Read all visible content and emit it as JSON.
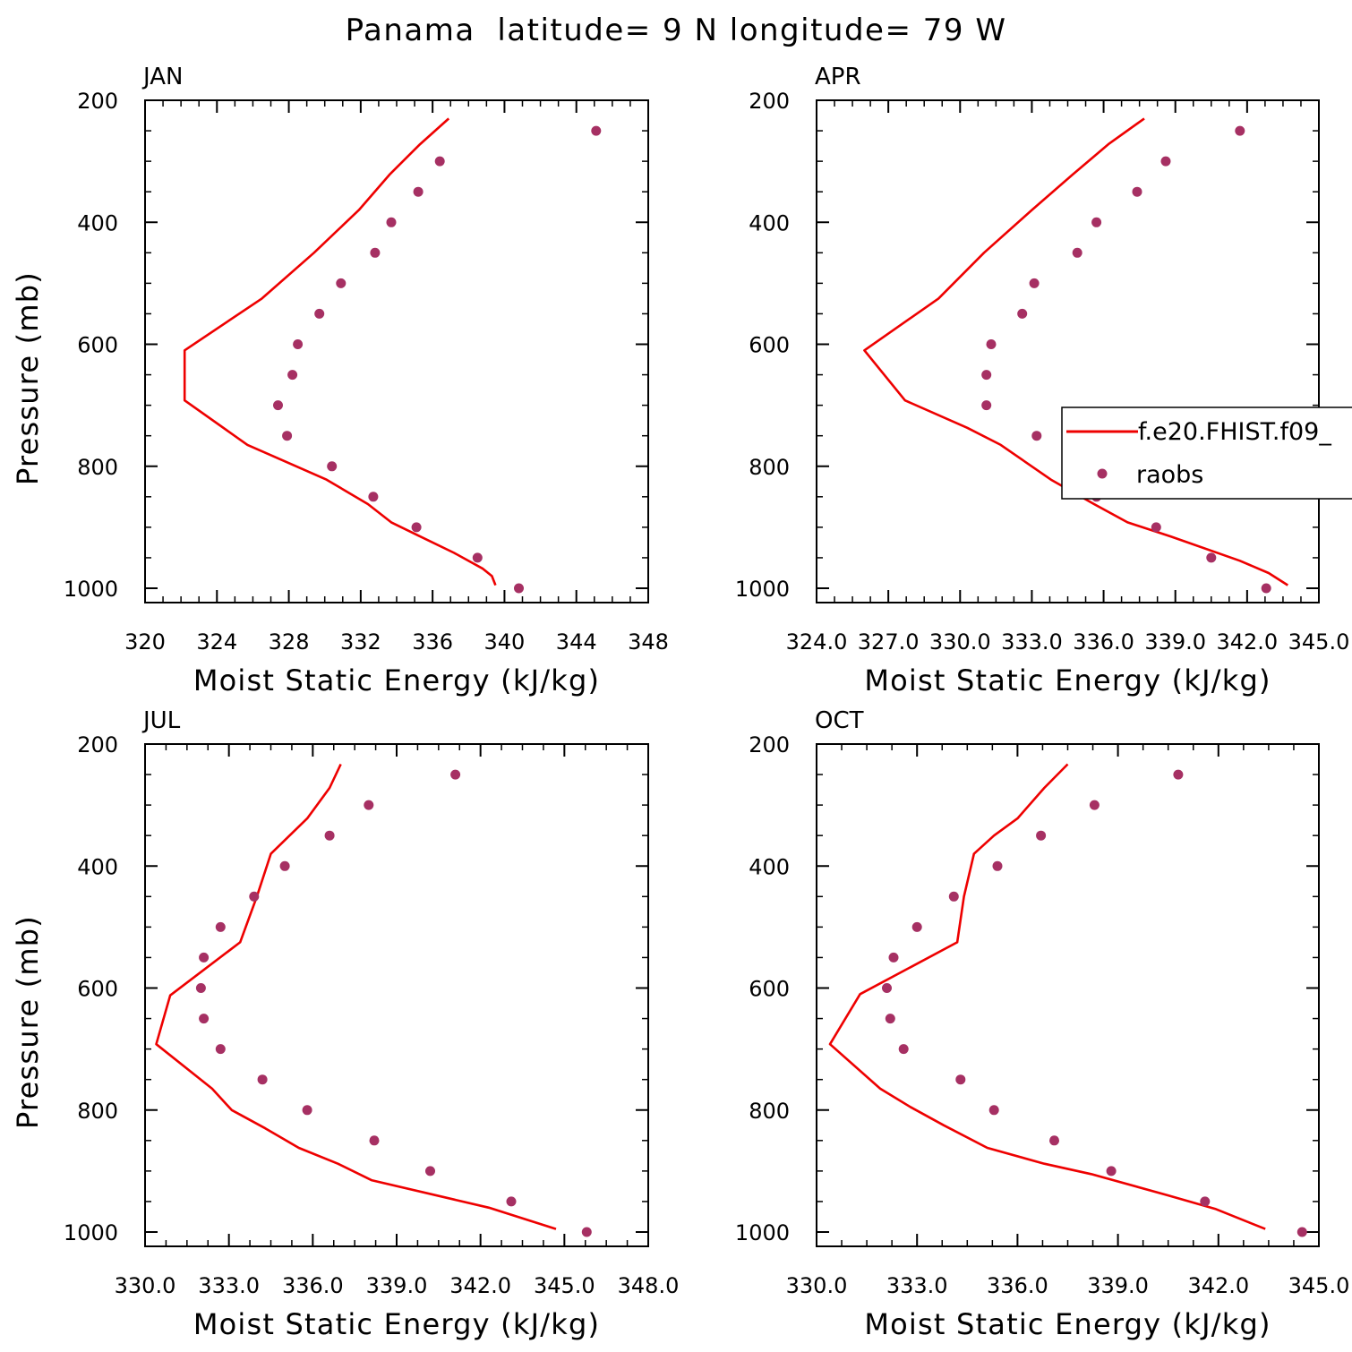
{
  "figure": {
    "title": "Panama  latitude= 9 N longitude= 79 W"
  },
  "legend": {
    "model_label": "f.e20.FHIST.f09_",
    "obs_label": "raobs",
    "model_color": "#ee0000",
    "obs_color": "#a63063"
  },
  "chart_data": [
    {
      "type": "line",
      "panel": "JAN",
      "xlabel": "Moist Static Energy (kJ/kg)",
      "ylabel": "Pressure (mb)",
      "xlim": [
        320,
        348
      ],
      "ylim": [
        200,
        1000
      ],
      "y_inverted": true,
      "xticks": [
        320,
        324,
        328,
        332,
        336,
        340,
        344,
        348
      ],
      "xtick_labels": [
        "320",
        "324",
        "328",
        "332",
        "336",
        "340",
        "344",
        "348"
      ],
      "yticks": [
        200,
        400,
        600,
        800,
        1000
      ],
      "ytick_labels": [
        "200",
        "400",
        "600",
        "800",
        "1000"
      ],
      "legend": false,
      "series": [
        {
          "name": "f.e20.FHIST.f09_",
          "kind": "line",
          "points": [
            [
              336.9,
              230
            ],
            [
              335.3,
              272
            ],
            [
              333.6,
              322
            ],
            [
              331.9,
              380
            ],
            [
              329.4,
              450
            ],
            [
              326.5,
              525
            ],
            [
              322.2,
              610
            ],
            [
              322.2,
              692
            ],
            [
              325.7,
              765
            ],
            [
              330.1,
              822
            ],
            [
              332.4,
              862
            ],
            [
              333.7,
              892
            ],
            [
              335.3,
              915
            ],
            [
              337.2,
              942
            ],
            [
              338.8,
              968
            ],
            [
              339.3,
              980
            ],
            [
              339.5,
              995
            ]
          ]
        },
        {
          "name": "raobs",
          "kind": "scatter",
          "points": [
            [
              345.1,
              250
            ],
            [
              336.4,
              300
            ],
            [
              335.2,
              350
            ],
            [
              333.7,
              400
            ],
            [
              332.8,
              450
            ],
            [
              330.9,
              500
            ],
            [
              329.7,
              550
            ],
            [
              328.5,
              600
            ],
            [
              328.2,
              650
            ],
            [
              327.4,
              700
            ],
            [
              327.9,
              750
            ],
            [
              330.4,
              800
            ],
            [
              332.7,
              850
            ],
            [
              335.1,
              900
            ],
            [
              338.5,
              950
            ],
            [
              340.8,
              1000
            ]
          ]
        }
      ]
    },
    {
      "type": "line",
      "panel": "APR",
      "xlabel": "Moist Static Energy (kJ/kg)",
      "ylabel": "",
      "xlim": [
        324.0,
        345.0
      ],
      "ylim": [
        200,
        1000
      ],
      "y_inverted": true,
      "xticks": [
        324,
        327,
        330,
        333,
        336,
        339,
        342,
        345
      ],
      "xtick_labels": [
        "324.0",
        "327.0",
        "330.0",
        "333.0",
        "336.0",
        "339.0",
        "342.0",
        "345.0"
      ],
      "yticks": [
        200,
        400,
        600,
        800,
        1000
      ],
      "ytick_labels": [
        "200",
        "400",
        "600",
        "800",
        "1000"
      ],
      "legend": true,
      "legend_position": "right",
      "series": [
        {
          "name": "f.e20.FHIST.f09_",
          "kind": "line",
          "points": [
            [
              337.7,
              230
            ],
            [
              336.2,
              272
            ],
            [
              334.7,
              322
            ],
            [
              333.0,
              380
            ],
            [
              331.0,
              450
            ],
            [
              329.1,
              525
            ],
            [
              326.0,
              610
            ],
            [
              327.7,
              692
            ],
            [
              330.3,
              737
            ],
            [
              331.7,
              765
            ],
            [
              333.8,
              822
            ],
            [
              335.6,
              862
            ],
            [
              337.0,
              892
            ],
            [
              338.8,
              915
            ],
            [
              341.7,
              955
            ],
            [
              342.9,
              975
            ],
            [
              343.7,
              995
            ]
          ]
        },
        {
          "name": "raobs",
          "kind": "scatter",
          "points": [
            [
              341.7,
              250
            ],
            [
              338.6,
              300
            ],
            [
              337.4,
              350
            ],
            [
              335.7,
              400
            ],
            [
              334.9,
              450
            ],
            [
              333.1,
              500
            ],
            [
              332.6,
              550
            ],
            [
              331.3,
              600
            ],
            [
              331.1,
              650
            ],
            [
              331.1,
              700
            ],
            [
              333.2,
              750
            ],
            [
              334.9,
              800
            ],
            [
              335.7,
              850
            ],
            [
              338.2,
              900
            ],
            [
              340.5,
              950
            ],
            [
              342.8,
              1000
            ]
          ]
        }
      ]
    },
    {
      "type": "line",
      "panel": "JUL",
      "xlabel": "Moist Static Energy (kJ/kg)",
      "ylabel": "Pressure (mb)",
      "xlim": [
        330.0,
        348.0
      ],
      "ylim": [
        200,
        1000
      ],
      "y_inverted": true,
      "xticks": [
        330,
        333,
        336,
        339,
        342,
        345,
        348
      ],
      "xtick_labels": [
        "330.0",
        "333.0",
        "336.0",
        "339.0",
        "342.0",
        "345.0",
        "348.0"
      ],
      "yticks": [
        200,
        400,
        600,
        800,
        1000
      ],
      "ytick_labels": [
        "200",
        "400",
        "600",
        "800",
        "1000"
      ],
      "legend": false,
      "series": [
        {
          "name": "f.e20.FHIST.f09_",
          "kind": "line",
          "points": [
            [
              337.0,
              233
            ],
            [
              336.6,
              272
            ],
            [
              335.8,
              322
            ],
            [
              334.5,
              380
            ],
            [
              334.0,
              450
            ],
            [
              333.4,
              525
            ],
            [
              330.9,
              612
            ],
            [
              330.4,
              692
            ],
            [
              332.4,
              765
            ],
            [
              333.1,
              800
            ],
            [
              334.3,
              830
            ],
            [
              335.5,
              862
            ],
            [
              336.9,
              888
            ],
            [
              338.1,
              915
            ],
            [
              342.3,
              960
            ],
            [
              344.7,
              995
            ]
          ]
        },
        {
          "name": "raobs",
          "kind": "scatter",
          "points": [
            [
              341.1,
              250
            ],
            [
              338.0,
              300
            ],
            [
              336.6,
              350
            ],
            [
              335.0,
              400
            ],
            [
              333.9,
              450
            ],
            [
              332.7,
              500
            ],
            [
              332.1,
              550
            ],
            [
              332.0,
              600
            ],
            [
              332.1,
              650
            ],
            [
              332.7,
              700
            ],
            [
              334.2,
              750
            ],
            [
              335.8,
              800
            ],
            [
              338.2,
              850
            ],
            [
              340.2,
              900
            ],
            [
              343.1,
              950
            ],
            [
              345.8,
              1000
            ]
          ]
        }
      ]
    },
    {
      "type": "line",
      "panel": "OCT",
      "xlabel": "Moist Static Energy (kJ/kg)",
      "ylabel": "",
      "xlim": [
        330.0,
        345.0
      ],
      "ylim": [
        200,
        1000
      ],
      "y_inverted": true,
      "xticks": [
        330,
        333,
        336,
        339,
        342,
        345
      ],
      "xtick_labels": [
        "330.0",
        "333.0",
        "336.0",
        "339.0",
        "342.0",
        "345.0"
      ],
      "yticks": [
        200,
        400,
        600,
        800,
        1000
      ],
      "ytick_labels": [
        "200",
        "400",
        "600",
        "800",
        "1000"
      ],
      "legend": false,
      "series": [
        {
          "name": "f.e20.FHIST.f09_",
          "kind": "line",
          "points": [
            [
              337.5,
              233
            ],
            [
              336.8,
              272
            ],
            [
              336.0,
              322
            ],
            [
              335.3,
              350
            ],
            [
              334.7,
              380
            ],
            [
              334.4,
              450
            ],
            [
              334.2,
              525
            ],
            [
              331.3,
              610
            ],
            [
              330.4,
              692
            ],
            [
              331.9,
              765
            ],
            [
              332.8,
              795
            ],
            [
              333.8,
              825
            ],
            [
              335.1,
              862
            ],
            [
              336.8,
              888
            ],
            [
              338.2,
              905
            ],
            [
              340.5,
              940
            ],
            [
              341.9,
              962
            ],
            [
              343.4,
              995
            ]
          ]
        },
        {
          "name": "raobs",
          "kind": "scatter",
          "points": [
            [
              340.8,
              250
            ],
            [
              338.3,
              300
            ],
            [
              336.7,
              350
            ],
            [
              335.4,
              400
            ],
            [
              334.1,
              450
            ],
            [
              333.0,
              500
            ],
            [
              332.3,
              550
            ],
            [
              332.1,
              600
            ],
            [
              332.2,
              650
            ],
            [
              332.6,
              700
            ],
            [
              334.3,
              750
            ],
            [
              335.3,
              800
            ],
            [
              337.1,
              850
            ],
            [
              338.8,
              900
            ],
            [
              341.6,
              950
            ],
            [
              344.5,
              1000
            ]
          ]
        }
      ]
    }
  ]
}
